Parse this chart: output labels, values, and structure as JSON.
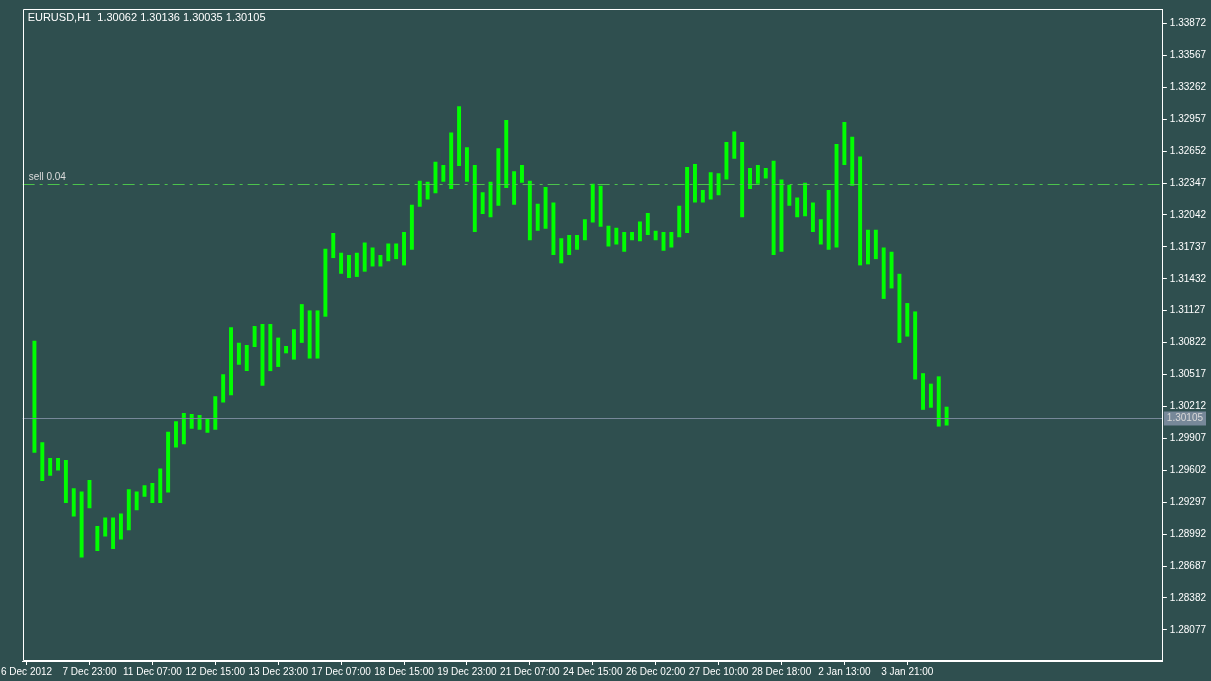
{
  "chart_data": {
    "type": "bar",
    "title": "EURUSD,H1  1.30062 1.30136 1.30035 1.30105",
    "categories": [
      "6 Dec 2012",
      null,
      null,
      null,
      null,
      null,
      null,
      null,
      "7 Dec 23:00",
      null,
      null,
      null,
      null,
      null,
      null,
      null,
      "11 Dec 07:00",
      null,
      null,
      null,
      null,
      null,
      null,
      null,
      "12 Dec 15:00",
      null,
      null,
      null,
      null,
      null,
      null,
      null,
      "13 Dec 23:00",
      null,
      null,
      null,
      null,
      null,
      null,
      null,
      "17 Dec 07:00",
      null,
      null,
      null,
      null,
      null,
      null,
      null,
      "18 Dec 15:00",
      null,
      null,
      null,
      null,
      null,
      null,
      null,
      "19 Dec 23:00",
      null,
      null,
      null,
      null,
      null,
      null,
      null,
      "21 Dec 07:00",
      null,
      null,
      null,
      null,
      null,
      null,
      null,
      "24 Dec 15:00",
      null,
      null,
      null,
      null,
      null,
      null,
      null,
      "26 Dec 02:00",
      null,
      null,
      null,
      null,
      null,
      null,
      null,
      "27 Dec 10:00",
      null,
      null,
      null,
      null,
      null,
      null,
      null,
      "28 Dec 18:00",
      null,
      null,
      null,
      null,
      null,
      null,
      null,
      "2 Jan 13:00",
      null,
      null,
      null,
      null,
      null,
      null,
      null,
      "3 Jan 21:00",
      null,
      null,
      null,
      null,
      null,
      null,
      null,
      null,
      null,
      null,
      null,
      null,
      null,
      null,
      null,
      null,
      null,
      null,
      null,
      null,
      null,
      null,
      null,
      null,
      null,
      null,
      null,
      null,
      null,
      null,
      null,
      null
    ],
    "base": [
      null,
      1.2977,
      1.295,
      1.2955,
      1.296,
      1.2929,
      1.2916,
      1.2877,
      1.2924,
      1.2883,
      1.2897,
      1.2885,
      1.2894,
      1.2903,
      1.2922,
      1.2935,
      1.2929,
      1.2929,
      1.2939,
      1.2982,
      1.2985,
      1.3,
      1.2999,
      1.2996,
      1.2999,
      1.3025,
      1.3032,
      1.3061,
      1.3055,
      1.3078,
      1.3041,
      1.3055,
      1.3059,
      1.3072,
      1.3066,
      1.3082,
      1.3067,
      1.3067,
      1.3107,
      1.3163,
      1.3148,
      1.3144,
      1.3145,
      1.315,
      1.3155,
      1.3155,
      1.316,
      1.3162,
      1.3156,
      1.3171,
      1.3212,
      1.3219,
      1.3225,
      1.3236,
      1.3229,
      1.3251,
      1.3236,
      1.3188,
      1.3205,
      1.3202,
      1.3213,
      1.323,
      1.3214,
      1.3235,
      1.318,
      1.3189,
      1.3191,
      1.3166,
      1.3158,
      1.3166,
      1.3171,
      1.318,
      1.3197,
      1.3193,
      1.3174,
      1.3176,
      1.3169,
      1.318,
      1.3179,
      1.3185,
      1.318,
      1.317,
      1.3173,
      1.3183,
      1.3187,
      1.3216,
      1.3216,
      1.3219,
      1.3223,
      1.3238,
      1.3258,
      1.3202,
      1.3229,
      1.3234,
      1.3239,
      1.3166,
      1.3169,
      1.3213,
      1.3202,
      1.3203,
      1.3188,
      1.3176,
      1.3171,
      1.3173,
      1.3252,
      1.3232,
      1.3156,
      1.3157,
      1.3162,
      1.3124,
      1.3134,
      1.3082,
      1.3088,
      1.3047,
      1.3018,
      1.302,
      1.3002,
      1.3003,
      null,
      null,
      null,
      null,
      null,
      null,
      null,
      null,
      null,
      null,
      null,
      null,
      null,
      null,
      null,
      null,
      null,
      null,
      null,
      null,
      null,
      null,
      null,
      null,
      null,
      null,
      null
    ],
    "values": [
      null,
      0.0107,
      0.0037,
      0.0017,
      0.0012,
      0.0041,
      0.0027,
      0.0063,
      0.0027,
      0.0024,
      0.0018,
      0.003,
      0.0025,
      0.0039,
      0.0018,
      0.0011,
      0.0019,
      0.0033,
      0.0058,
      0.0025,
      0.003,
      0.0014,
      0.0014,
      0.0014,
      0.0032,
      0.0027,
      0.0065,
      0.0021,
      0.0025,
      0.002,
      0.0059,
      0.0045,
      0.0028,
      0.0007,
      0.0029,
      0.0037,
      0.0046,
      0.0046,
      0.0065,
      0.0024,
      0.002,
      0.0022,
      0.0023,
      0.0028,
      0.0018,
      0.0011,
      0.0017,
      0.0015,
      0.0032,
      0.0043,
      0.0025,
      0.0017,
      0.003,
      0.0016,
      0.0054,
      0.0057,
      0.0033,
      0.0064,
      0.0021,
      0.0034,
      0.0055,
      0.0065,
      0.0032,
      0.0017,
      0.0057,
      0.0026,
      0.004,
      0.005,
      0.0024,
      0.0019,
      0.0014,
      0.002,
      0.0037,
      0.0039,
      0.002,
      0.0016,
      0.0019,
      0.0008,
      0.0019,
      0.0021,
      0.0009,
      0.0018,
      0.0015,
      0.003,
      0.0063,
      0.0037,
      0.0012,
      0.0026,
      0.0021,
      0.0036,
      0.0026,
      0.0072,
      0.002,
      0.0018,
      0.001,
      0.009,
      0.0069,
      0.002,
      0.0019,
      0.0032,
      0.0028,
      0.0024,
      0.0057,
      0.0099,
      0.0041,
      0.0047,
      0.0104,
      0.0033,
      0.0028,
      0.0049,
      0.0035,
      0.0066,
      0.0032,
      0.0065,
      0.0035,
      0.0023,
      0.0048,
      0.0018,
      null,
      null,
      null,
      null,
      null,
      null,
      null,
      null,
      null,
      null,
      null,
      null,
      null,
      null,
      null,
      null,
      null,
      null,
      null,
      null,
      null,
      null,
      null,
      null,
      null,
      null,
      null
    ],
    "color": "#00ff00",
    "ylim": [
      1.2778,
      1.3401
    ],
    "yticks": [
      1.28077,
      1.28382,
      1.28687,
      1.28992,
      1.29297,
      1.29602,
      1.29907,
      1.30212,
      1.30517,
      1.30822,
      1.31127,
      1.31432,
      1.31737,
      1.32042,
      1.32347,
      1.32652,
      1.32957,
      1.33262,
      1.33567,
      1.33872
    ],
    "ref_lines": [
      {
        "axis": "y",
        "value": 1.30105,
        "label": "1.30105",
        "color": "#778899",
        "line_style": "solid"
      },
      {
        "axis": "y",
        "value": 1.3234,
        "label": "sell 0.04",
        "color": "#4cc34c",
        "line_style": "dashdot"
      }
    ],
    "grid": false,
    "legend": false
  }
}
